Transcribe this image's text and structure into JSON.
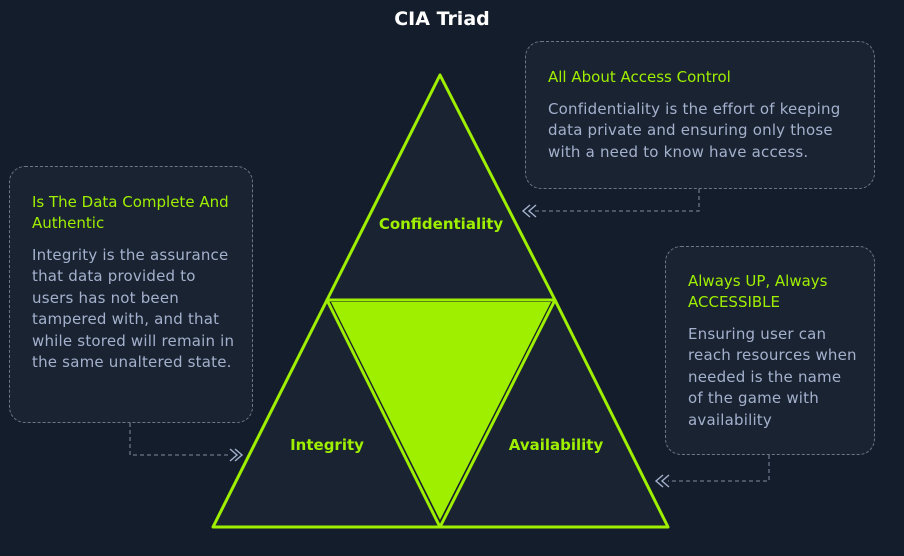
{
  "title": "CIA Triad",
  "triangle": {
    "top_label": "Confidentiality",
    "left_label": "Integrity",
    "right_label": "Availability"
  },
  "boxes": {
    "confidentiality": {
      "heading": "All About Access Control",
      "body": "Confidentiality is the effort of keeping data private and ensuring only those with a need to know have access."
    },
    "integrity": {
      "heading": "Is The Data Complete And Authentic",
      "body": "Integrity is the assurance that data provided to users has not been tampered with, and that while stored will remain in the same unaltered state."
    },
    "availability": {
      "heading": "Always UP, Always ACCESSIBLE",
      "body": "Ensuring user can reach resources when needed is the name of the game with availability"
    }
  },
  "colors": {
    "background": "#141d2b",
    "accent": "#9fef00",
    "panel": "#1a2332",
    "text": "#a4b1cd",
    "title": "#ffffff"
  }
}
